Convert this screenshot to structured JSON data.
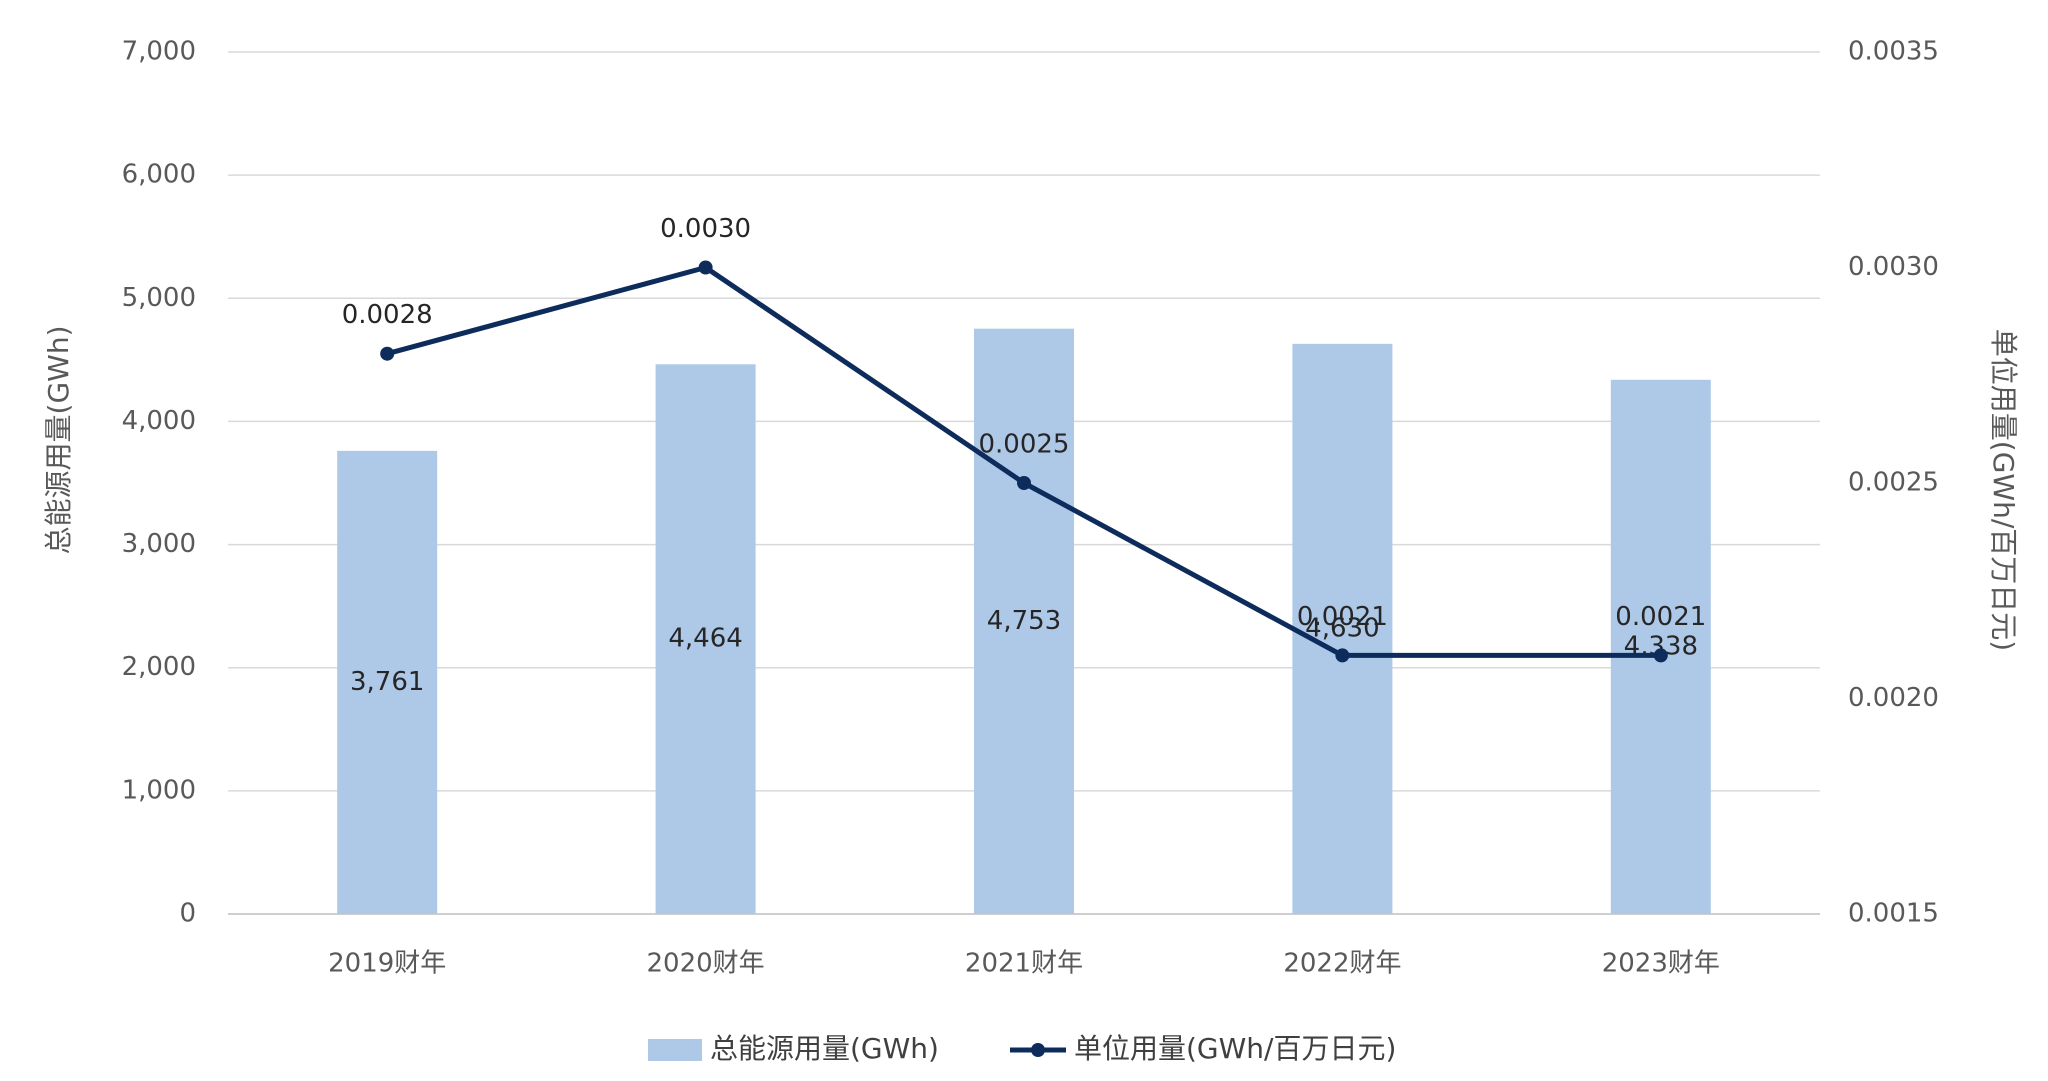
{
  "chart_data": {
    "type": "bar",
    "categories": [
      "2019财年",
      "2020财年",
      "2021财年",
      "2022财年",
      "2023财年"
    ],
    "series": [
      {
        "name": "总能源用量(GWh)",
        "type": "bar",
        "axis": "left",
        "values": [
          3761,
          4464,
          4753,
          4630,
          4338
        ],
        "labels": [
          "3,761",
          "4,464",
          "4,753",
          "4,630",
          "4,338"
        ],
        "color": "#aec8e8"
      },
      {
        "name": "单位用量(GWh/百万日元)",
        "type": "line",
        "axis": "right",
        "values": [
          0.0028,
          0.003,
          0.0025,
          0.0021,
          0.0021
        ],
        "labels": [
          "0.0028",
          "0.0030",
          "0.0025",
          "0.0021",
          "0.0021"
        ],
        "color": "#0e2c5b"
      }
    ],
    "y_left": {
      "label": "总能源用量(GWh)",
      "range": [
        0,
        7000
      ],
      "ticks": [
        0,
        1000,
        2000,
        3000,
        4000,
        5000,
        6000,
        7000
      ],
      "tick_labels": [
        "0",
        "1,000",
        "2,000",
        "3,000",
        "4,000",
        "5,000",
        "6,000",
        "7,000"
      ]
    },
    "y_right": {
      "label": "单位用量(GWh/百万日元)",
      "range": [
        0.0015,
        0.0035
      ],
      "ticks": [
        0.0015,
        0.002,
        0.0025,
        0.003,
        0.0035
      ],
      "tick_labels": [
        "0.0015",
        "0.0020",
        "0.0025",
        "0.0030",
        "0.0035"
      ]
    },
    "grid": true,
    "legend": "bottom",
    "colors": {
      "axis_text": "#595959",
      "gridline": "#d9d9d9",
      "label_text": "#262626"
    }
  }
}
